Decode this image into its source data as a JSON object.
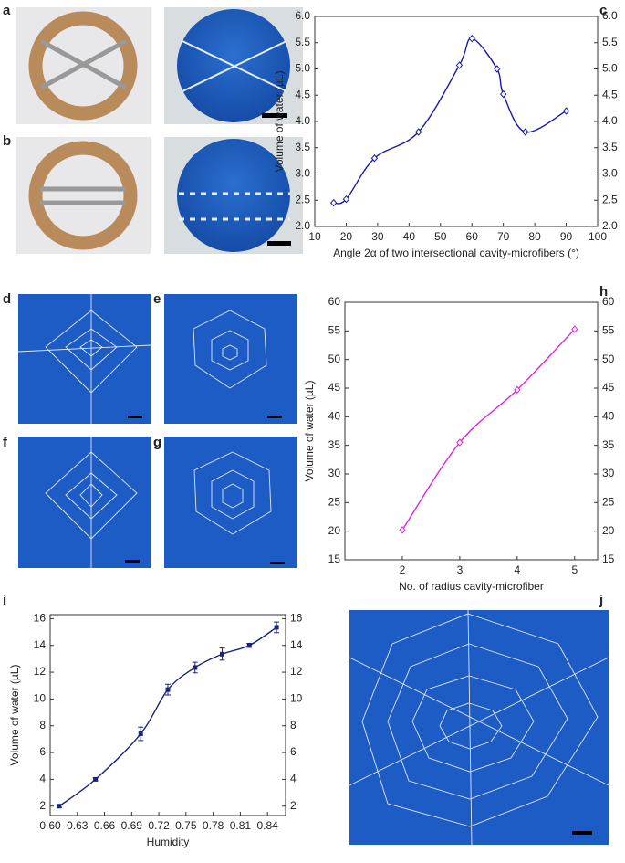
{
  "panel_labels": [
    "a",
    "b",
    "c",
    "d",
    "e",
    "f",
    "g",
    "h",
    "i",
    "j"
  ],
  "chart_data": [
    {
      "type": "line",
      "xlabel": "Angle 2α of two intersectional cavity-microfibers (°)",
      "ylabel": "Volume of water (µL)",
      "x": [
        16,
        20,
        29,
        43,
        56,
        60,
        68,
        70,
        77,
        90
      ],
      "values": [
        2.45,
        2.52,
        3.3,
        3.8,
        5.07,
        5.58,
        5.0,
        4.52,
        3.8,
        4.2
      ],
      "color": "#1a1aa8",
      "marker": "diamond",
      "smooth": true,
      "xlim": [
        10,
        100
      ],
      "xticks": [
        10,
        20,
        30,
        40,
        50,
        60,
        70,
        80,
        90,
        100
      ],
      "ylim": [
        2,
        6
      ],
      "yticks": [
        {
          "value": 2,
          "label": "2.0"
        },
        2.5,
        {
          "value": 3,
          "label": "3.0"
        },
        3.5,
        {
          "value": 4,
          "label": "4.0"
        },
        4.5,
        {
          "value": 5,
          "label": "5.0"
        },
        5.5,
        {
          "value": 6,
          "label": "6.0"
        }
      ]
    },
    {
      "type": "line",
      "xlabel": "No. of radius cavity-microfiber",
      "ylabel": "Volume of water (µL)",
      "x": [
        2,
        3,
        4,
        5
      ],
      "values": [
        20.2,
        35.5,
        44.7,
        55.3
      ],
      "color": "#e020e0",
      "marker": "diamond",
      "smooth": true,
      "xlim": [
        1,
        5.4
      ],
      "xticks": [
        2,
        3,
        4,
        5
      ],
      "ylim": [
        15,
        60
      ],
      "yticks": [
        15,
        20,
        25,
        30,
        35,
        40,
        45,
        50,
        55,
        60
      ]
    },
    {
      "type": "line",
      "xlabel": "Humidity",
      "ylabel": "Volume of water (µL)",
      "x": [
        0.61,
        0.65,
        0.7,
        0.73,
        0.76,
        0.79,
        0.82,
        0.85
      ],
      "values": [
        2.0,
        4.0,
        7.4,
        10.7,
        12.35,
        13.35,
        14.0,
        15.35
      ],
      "errors": [
        0.1,
        0.1,
        0.5,
        0.4,
        0.4,
        0.45,
        0.15,
        0.4
      ],
      "color": "#1a237e",
      "marker": "square",
      "smooth": true,
      "xlim": [
        0.6,
        0.86
      ],
      "xticks": [
        {
          "value": 0.6,
          "label": "0.60"
        },
        0.63,
        0.66,
        0.69,
        0.72,
        0.75,
        0.78,
        0.81,
        0.84
      ],
      "ylim": [
        1.3,
        16.3
      ],
      "yticks": [
        2,
        4,
        6,
        8,
        10,
        12,
        14,
        16
      ]
    }
  ]
}
